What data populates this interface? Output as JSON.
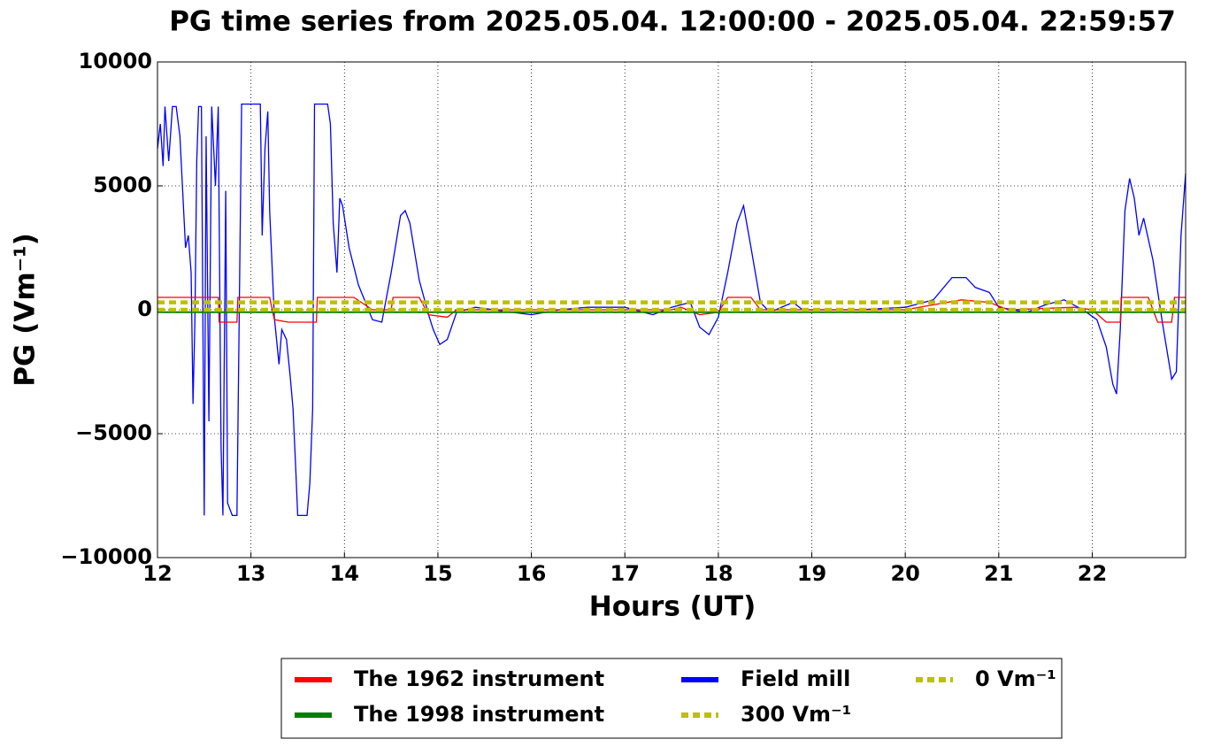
{
  "chart_data": {
    "type": "line",
    "title": "PG time series from 2025.05.04. 12:00:00 - 2025.05.04. 22:59:57",
    "x_label": "Hours (UT)",
    "y_label": "PG (Vm⁻¹)",
    "xlim": [
      12,
      22.999
    ],
    "xticks": [
      12,
      13,
      14,
      15,
      16,
      17,
      18,
      19,
      20,
      21,
      22
    ],
    "ylim": [
      -10000,
      10000
    ],
    "yticks": [
      {
        "value": -10000,
        "label": "−10000"
      },
      {
        "value": -5000,
        "label": "−5000"
      },
      0,
      5000,
      10000
    ],
    "grid": true,
    "legend": "bottom",
    "series": [
      {
        "name": "The 1962 instrument",
        "color": "#ff0000",
        "linestyle": "solid",
        "x": [
          12,
          12.65,
          12.66,
          12.85,
          12.86,
          13.2,
          13.25,
          13.4,
          13.7,
          13.71,
          14.1,
          14.3,
          14.5,
          14.52,
          14.8,
          14.9,
          15.1,
          15.2,
          17.5,
          17.6,
          17.8,
          18.0,
          18.1,
          18.35,
          18.45,
          20.0,
          20.3,
          20.6,
          20.9,
          21.1,
          21.8,
          22.0,
          22.15,
          22.3,
          22.31,
          22.6,
          22.7,
          22.85,
          22.88,
          22.999
        ],
        "values": [
          500,
          500,
          -500,
          -500,
          500,
          500,
          -400,
          -500,
          -500,
          500,
          500,
          0,
          0,
          500,
          500,
          -200,
          -300,
          0,
          0,
          100,
          -200,
          -100,
          500,
          500,
          0,
          0,
          200,
          400,
          300,
          0,
          100,
          0,
          -500,
          -500,
          500,
          500,
          -500,
          -500,
          500,
          500
        ]
      },
      {
        "name": "The 1998 instrument",
        "color": "#008000",
        "linestyle": "solid",
        "x": [
          12,
          22.999
        ],
        "values": [
          -100,
          -100
        ]
      },
      {
        "name": "Field mill",
        "color": "#0000ff",
        "linestyle": "solid",
        "x": [
          12.0,
          12.03,
          12.06,
          12.08,
          12.12,
          12.16,
          12.2,
          12.24,
          12.28,
          12.3,
          12.33,
          12.36,
          12.38,
          12.4,
          12.42,
          12.44,
          12.47,
          12.5,
          12.52,
          12.55,
          12.58,
          12.62,
          12.65,
          12.68,
          12.7,
          12.73,
          12.75,
          12.8,
          12.85,
          12.9,
          13.1,
          13.12,
          13.15,
          13.18,
          13.2,
          13.25,
          13.3,
          13.33,
          13.38,
          13.42,
          13.45,
          13.48,
          13.5,
          13.6,
          13.63,
          13.66,
          13.68,
          13.82,
          13.85,
          13.88,
          13.92,
          13.95,
          13.98,
          14.05,
          14.15,
          14.3,
          14.4,
          14.5,
          14.6,
          14.65,
          14.7,
          14.8,
          14.9,
          14.95,
          15.02,
          15.1,
          15.2,
          15.4,
          15.6,
          15.8,
          16.0,
          16.3,
          16.6,
          17.0,
          17.3,
          17.5,
          17.7,
          17.8,
          17.9,
          18.0,
          18.1,
          18.2,
          18.27,
          18.35,
          18.45,
          18.55,
          18.8,
          18.9,
          19.5,
          20.0,
          20.3,
          20.5,
          20.65,
          20.75,
          20.9,
          21.0,
          21.3,
          21.5,
          21.7,
          21.9,
          22.05,
          22.15,
          22.22,
          22.26,
          22.3,
          22.35,
          22.4,
          22.45,
          22.5,
          22.55,
          22.65,
          22.75,
          22.85,
          22.9,
          22.95,
          22.999
        ],
        "values": [
          6500,
          7500,
          5800,
          8200,
          6000,
          8200,
          8200,
          7000,
          4000,
          2500,
          3000,
          1500,
          -3800,
          -500,
          6000,
          8200,
          8200,
          -8300,
          7000,
          -4500,
          8200,
          5000,
          8200,
          -5500,
          -8300,
          4800,
          -7800,
          -8300,
          -8300,
          8300,
          8300,
          3000,
          6500,
          8000,
          4000,
          -300,
          -2200,
          -800,
          -1200,
          -2700,
          -4000,
          -6500,
          -8300,
          -8300,
          -7000,
          -4000,
          8300,
          8300,
          7500,
          3500,
          1500,
          4500,
          4200,
          2500,
          1000,
          -400,
          -500,
          1500,
          3800,
          4000,
          3500,
          1200,
          -200,
          -800,
          -1400,
          -1200,
          -100,
          100,
          0,
          -100,
          -200,
          0,
          100,
          100,
          -200,
          100,
          300,
          -700,
          -1000,
          -300,
          1500,
          3500,
          4200,
          2500,
          300,
          -100,
          300,
          0,
          0,
          100,
          400,
          1300,
          1300,
          900,
          700,
          100,
          -100,
          200,
          400,
          0,
          -400,
          -1500,
          -3000,
          -3400,
          -800,
          4000,
          5300,
          4500,
          3000,
          3700,
          2000,
          -500,
          -2800,
          -2500,
          3000,
          5500
        ]
      },
      {
        "name": "300 Vm⁻¹",
        "color": "#bfbf00",
        "linestyle": "dashed",
        "x": [
          12,
          22.999
        ],
        "values": [
          300,
          300
        ]
      },
      {
        "name": "0 Vm⁻¹",
        "color": "#bfbf00",
        "linestyle": "dashed",
        "x": [
          12,
          22.999
        ],
        "values": [
          0,
          0
        ]
      }
    ]
  }
}
